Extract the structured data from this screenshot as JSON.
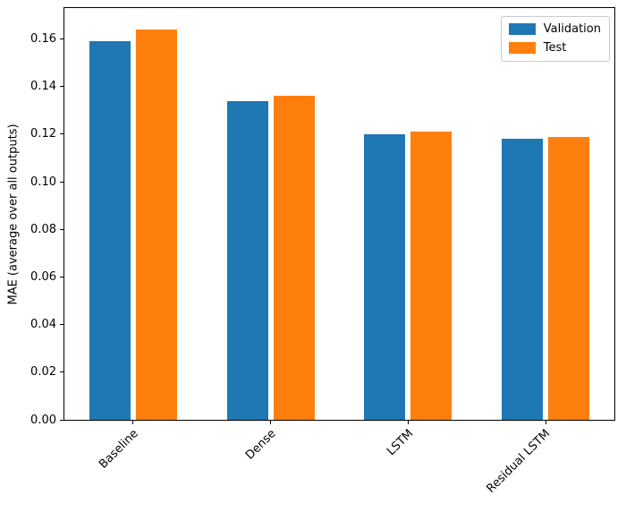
{
  "figure": {
    "background": "#ffffff",
    "axis_color": "#000000",
    "legend_border_color": "#cccccc"
  },
  "chart_data": {
    "type": "bar",
    "title": "",
    "xlabel": "",
    "ylabel": "MAE (average over all outputs)",
    "categories": [
      "Baseline",
      "Dense",
      "LSTM",
      "Residual LSTM"
    ],
    "series": [
      {
        "name": "Validation",
        "color": "#1f77b4",
        "values": [
          0.159,
          0.134,
          0.12,
          0.118
        ]
      },
      {
        "name": "Test",
        "color": "#ff7f0e",
        "values": [
          0.164,
          0.136,
          0.121,
          0.119
        ]
      }
    ],
    "ylim": [
      0,
      0.173
    ],
    "ytick_labels": [
      "0.00",
      "0.02",
      "0.04",
      "0.06",
      "0.08",
      "0.10",
      "0.12",
      "0.14",
      "0.16"
    ],
    "grid": false,
    "legend_position": "upper right",
    "xtick_rotation_deg": 45,
    "bar_width_fraction": 0.3
  }
}
